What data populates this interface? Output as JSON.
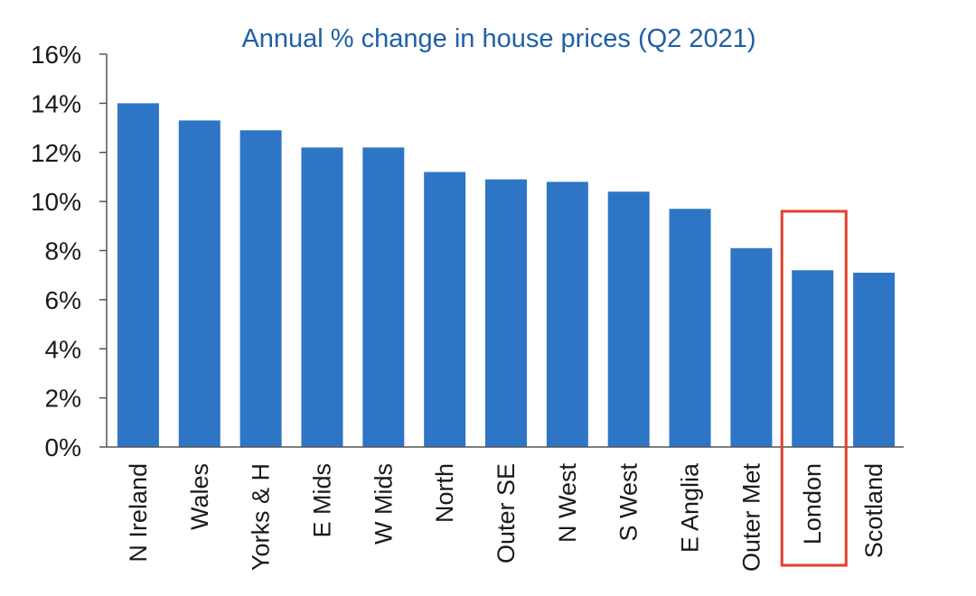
{
  "chart_data": {
    "type": "bar",
    "title": "Annual % change in house prices (Q2 2021)",
    "xlabel": "",
    "ylabel": "",
    "ylim": [
      0,
      16
    ],
    "yticks": [
      0,
      2,
      4,
      6,
      8,
      10,
      12,
      14,
      16
    ],
    "ytick_labels": [
      "0%",
      "2%",
      "4%",
      "6%",
      "8%",
      "10%",
      "12%",
      "14%",
      "16%"
    ],
    "categories": [
      "N Ireland",
      "Wales",
      "Yorks & H",
      "E Mids",
      "W Mids",
      "North",
      "Outer SE",
      "N West",
      "S West",
      "E Anglia",
      "Outer Met",
      "London",
      "Scotland"
    ],
    "values": [
      14.0,
      13.3,
      12.9,
      12.2,
      12.2,
      11.2,
      10.9,
      10.8,
      10.4,
      9.7,
      8.1,
      7.2,
      7.1
    ],
    "highlighted_category": "London",
    "grid": false,
    "colors": {
      "bar": "#2e75c6",
      "title": "#1f5fa8",
      "highlight_box": "#e0402b",
      "axis": "#555555",
      "text": "#1a1a1a"
    }
  }
}
